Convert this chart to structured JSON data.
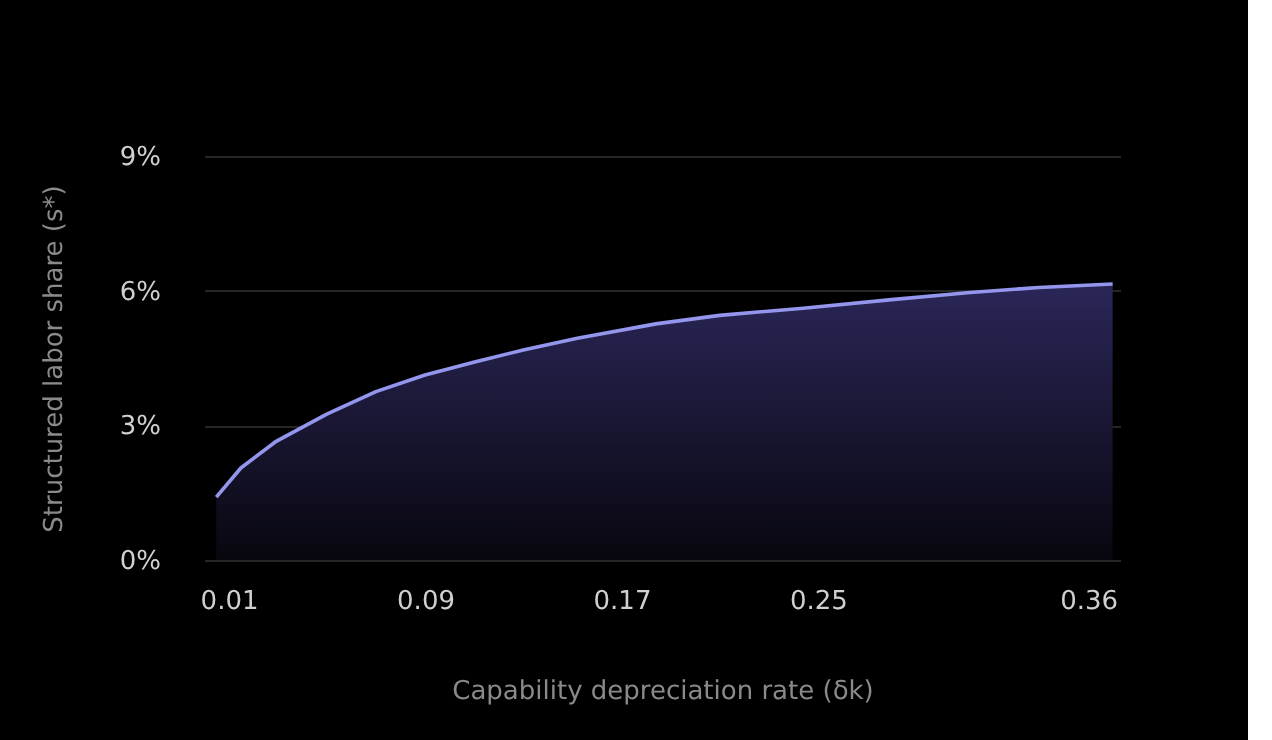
{
  "chart_data": {
    "type": "area",
    "xlabel": "Capability depreciation rate (δk)",
    "ylabel": "Structured labor share (s*)",
    "x": [
      0.005,
      0.015,
      0.029,
      0.05,
      0.07,
      0.09,
      0.111,
      0.13,
      0.152,
      0.184,
      0.21,
      0.244,
      0.28,
      0.312,
      0.34,
      0.37
    ],
    "series": [
      {
        "color": "#9496ee",
        "values": [
          1.4,
          2.05,
          2.63,
          3.25,
          3.75,
          4.12,
          4.42,
          4.68,
          4.94,
          5.26,
          5.45,
          5.61,
          5.8,
          5.96,
          6.07,
          6.15
        ]
      }
    ],
    "xlim": [
      0.0,
      0.373
    ],
    "xticks": [
      0.01,
      0.09,
      0.17,
      0.25,
      0.36
    ],
    "ylim": [
      0,
      9
    ],
    "yticks": [
      {
        "value": 0,
        "label": "0%"
      },
      {
        "value": 3,
        "label": "3%"
      },
      {
        "value": 6,
        "label": "6%"
      },
      {
        "value": 9,
        "label": "9%"
      }
    ],
    "grid": "y"
  }
}
